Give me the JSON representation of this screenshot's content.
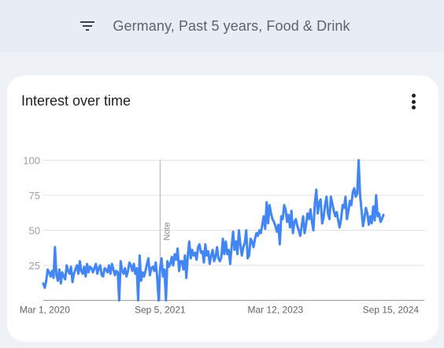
{
  "filter_bar": {
    "icon": "filter-list-icon",
    "text": "Germany, Past 5 years, Food & Drink"
  },
  "card": {
    "title": "Interest over time",
    "menu_icon": "more-vert-icon"
  },
  "colors": {
    "line": "#4285f4",
    "grid": "#e0e0e0",
    "axis_label": "#9aa0a6",
    "note_line": "#b0b0b0"
  },
  "chart_data": {
    "type": "line",
    "title": "",
    "xlabel": "",
    "ylabel": "",
    "ylim": [
      0,
      100
    ],
    "y_ticks": [
      25,
      50,
      75,
      100
    ],
    "x_range": [
      "2020-02-23",
      "2025-02-23"
    ],
    "x_ticks": [
      {
        "date": "2020-03-01",
        "label": "Mar 1, 2020"
      },
      {
        "date": "2021-09-05",
        "label": "Sep 5, 2021"
      },
      {
        "date": "2023-03-12",
        "label": "Mar 12, 2023"
      },
      {
        "date": "2024-09-15",
        "label": "Sep 15, 2024"
      }
    ],
    "annotation": {
      "date": "2021-09-05",
      "label": "Note"
    },
    "series": [
      {
        "values": [
          12,
          9,
          14,
          22,
          20,
          17,
          21,
          16,
          38,
          18,
          14,
          22,
          12,
          20,
          17,
          15,
          25,
          21,
          19,
          24,
          13,
          19,
          22,
          25,
          19,
          28,
          21,
          19,
          24,
          17,
          26,
          20,
          24,
          23,
          20,
          23,
          26,
          19,
          23,
          25,
          18,
          17,
          23,
          22,
          20,
          25,
          19,
          26,
          22,
          18,
          21,
          20,
          0,
          28,
          21,
          19,
          23,
          17,
          21,
          27,
          25,
          21,
          26,
          19,
          23,
          0,
          32,
          14,
          20,
          17,
          21,
          26,
          30,
          18,
          23,
          24,
          21,
          27,
          17,
          0,
          23,
          30,
          17,
          22,
          0,
          28,
          24,
          26,
          31,
          25,
          33,
          29,
          37,
          21,
          28,
          28,
          22,
          32,
          16,
          32,
          42,
          30,
          36,
          32,
          34,
          29,
          38,
          40,
          34,
          35,
          27,
          40,
          32,
          35,
          26,
          32,
          36,
          28,
          31,
          38,
          30,
          28,
          31,
          44,
          33,
          42,
          33,
          36,
          26,
          38,
          49,
          36,
          42,
          33,
          50,
          40,
          32,
          38,
          41,
          50,
          30,
          32,
          44,
          42,
          38,
          44,
          48,
          46,
          50,
          48,
          54,
          60,
          51,
          70,
          55,
          68,
          62,
          58,
          56,
          53,
          49,
          54,
          40,
          60,
          58,
          68,
          65,
          56,
          61,
          52,
          64,
          48,
          56,
          58,
          53,
          50,
          46,
          53,
          60,
          48,
          54,
          62,
          58,
          65,
          56,
          50,
          69,
          79,
          62,
          70,
          72,
          55,
          59,
          68,
          74,
          62,
          58,
          74,
          69,
          64,
          60,
          63,
          57,
          52,
          58,
          68,
          66,
          74,
          58,
          64,
          71,
          68,
          77,
          80,
          74,
          76,
          100,
          75,
          64,
          53,
          59,
          66,
          62,
          54,
          60,
          55,
          67,
          57,
          75,
          60,
          62,
          56,
          58,
          61
        ]
      }
    ]
  }
}
